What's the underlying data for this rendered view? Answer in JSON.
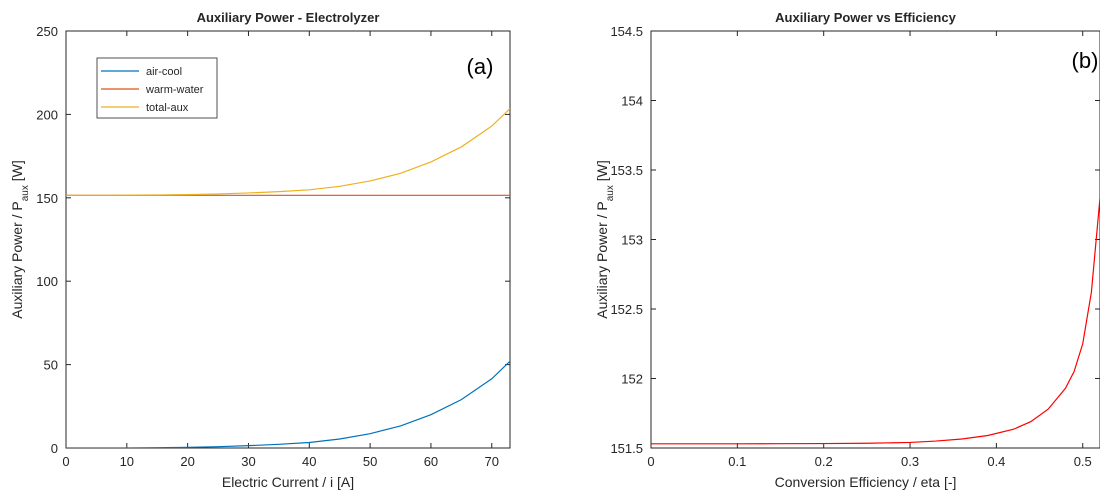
{
  "chart_data": [
    {
      "type": "line",
      "panel_label": "(a)",
      "title": "Auxiliary Power - Electrolyzer",
      "xlabel": "Electric Current / i [A]",
      "ylabel_main": "Auxiliary Power / P",
      "ylabel_sub": "aux",
      "ylabel_tail": " [W]",
      "xlim": [
        0,
        73
      ],
      "ylim": [
        0,
        250
      ],
      "xticks": [
        0,
        10,
        20,
        30,
        40,
        50,
        60,
        70
      ],
      "yticks": [
        0,
        50,
        100,
        150,
        200,
        250
      ],
      "grid": false,
      "legend_position": "top-left",
      "x": [
        0,
        5,
        10,
        15,
        20,
        25,
        30,
        35,
        40,
        45,
        50,
        55,
        60,
        65,
        70,
        73
      ],
      "series": [
        {
          "name": "air-cool",
          "color": "#0072BD",
          "values": [
            0,
            0.0,
            0.05,
            0.2,
            0.4,
            0.8,
            1.4,
            2.2,
            3.3,
            5.4,
            8.6,
            13.2,
            20.0,
            29.0,
            41.5,
            52.0
          ]
        },
        {
          "name": "warm-water",
          "color": "#D95319",
          "values": [
            151.5,
            151.5,
            151.5,
            151.5,
            151.5,
            151.5,
            151.5,
            151.5,
            151.5,
            151.5,
            151.5,
            151.5,
            151.5,
            151.5,
            151.5,
            151.5
          ]
        },
        {
          "name": "total-aux",
          "color": "#EDB120",
          "values": [
            151.5,
            151.5,
            151.6,
            151.7,
            151.9,
            152.3,
            152.9,
            153.7,
            154.8,
            156.9,
            160.1,
            164.7,
            171.5,
            180.5,
            193.0,
            203.5
          ]
        }
      ]
    },
    {
      "type": "line",
      "panel_label": "(b)",
      "title": "Auxiliary Power vs Efficiency",
      "xlabel": "Conversion Efficiency / eta [-]",
      "ylabel_main": "Auxiliary Power / P",
      "ylabel_sub": "aux",
      "ylabel_tail": " [W]",
      "xlim": [
        0,
        0.52
      ],
      "ylim": [
        151.5,
        154.5
      ],
      "xticks": [
        0,
        0.1,
        0.2,
        0.3,
        0.4,
        0.5
      ],
      "yticks": [
        151.5,
        152,
        152.5,
        153,
        153.5,
        154,
        154.5
      ],
      "grid": false,
      "x": [
        0,
        0.05,
        0.1,
        0.15,
        0.2,
        0.25,
        0.3,
        0.33,
        0.36,
        0.39,
        0.42,
        0.44,
        0.46,
        0.48,
        0.49,
        0.5,
        0.51,
        0.52
      ],
      "series": [
        {
          "color": "#FF0000",
          "values": [
            151.53,
            151.53,
            151.53,
            151.531,
            151.532,
            151.534,
            151.54,
            151.55,
            151.565,
            151.59,
            151.635,
            151.69,
            151.78,
            151.93,
            152.05,
            152.25,
            152.62,
            153.3
          ]
        }
      ]
    }
  ]
}
